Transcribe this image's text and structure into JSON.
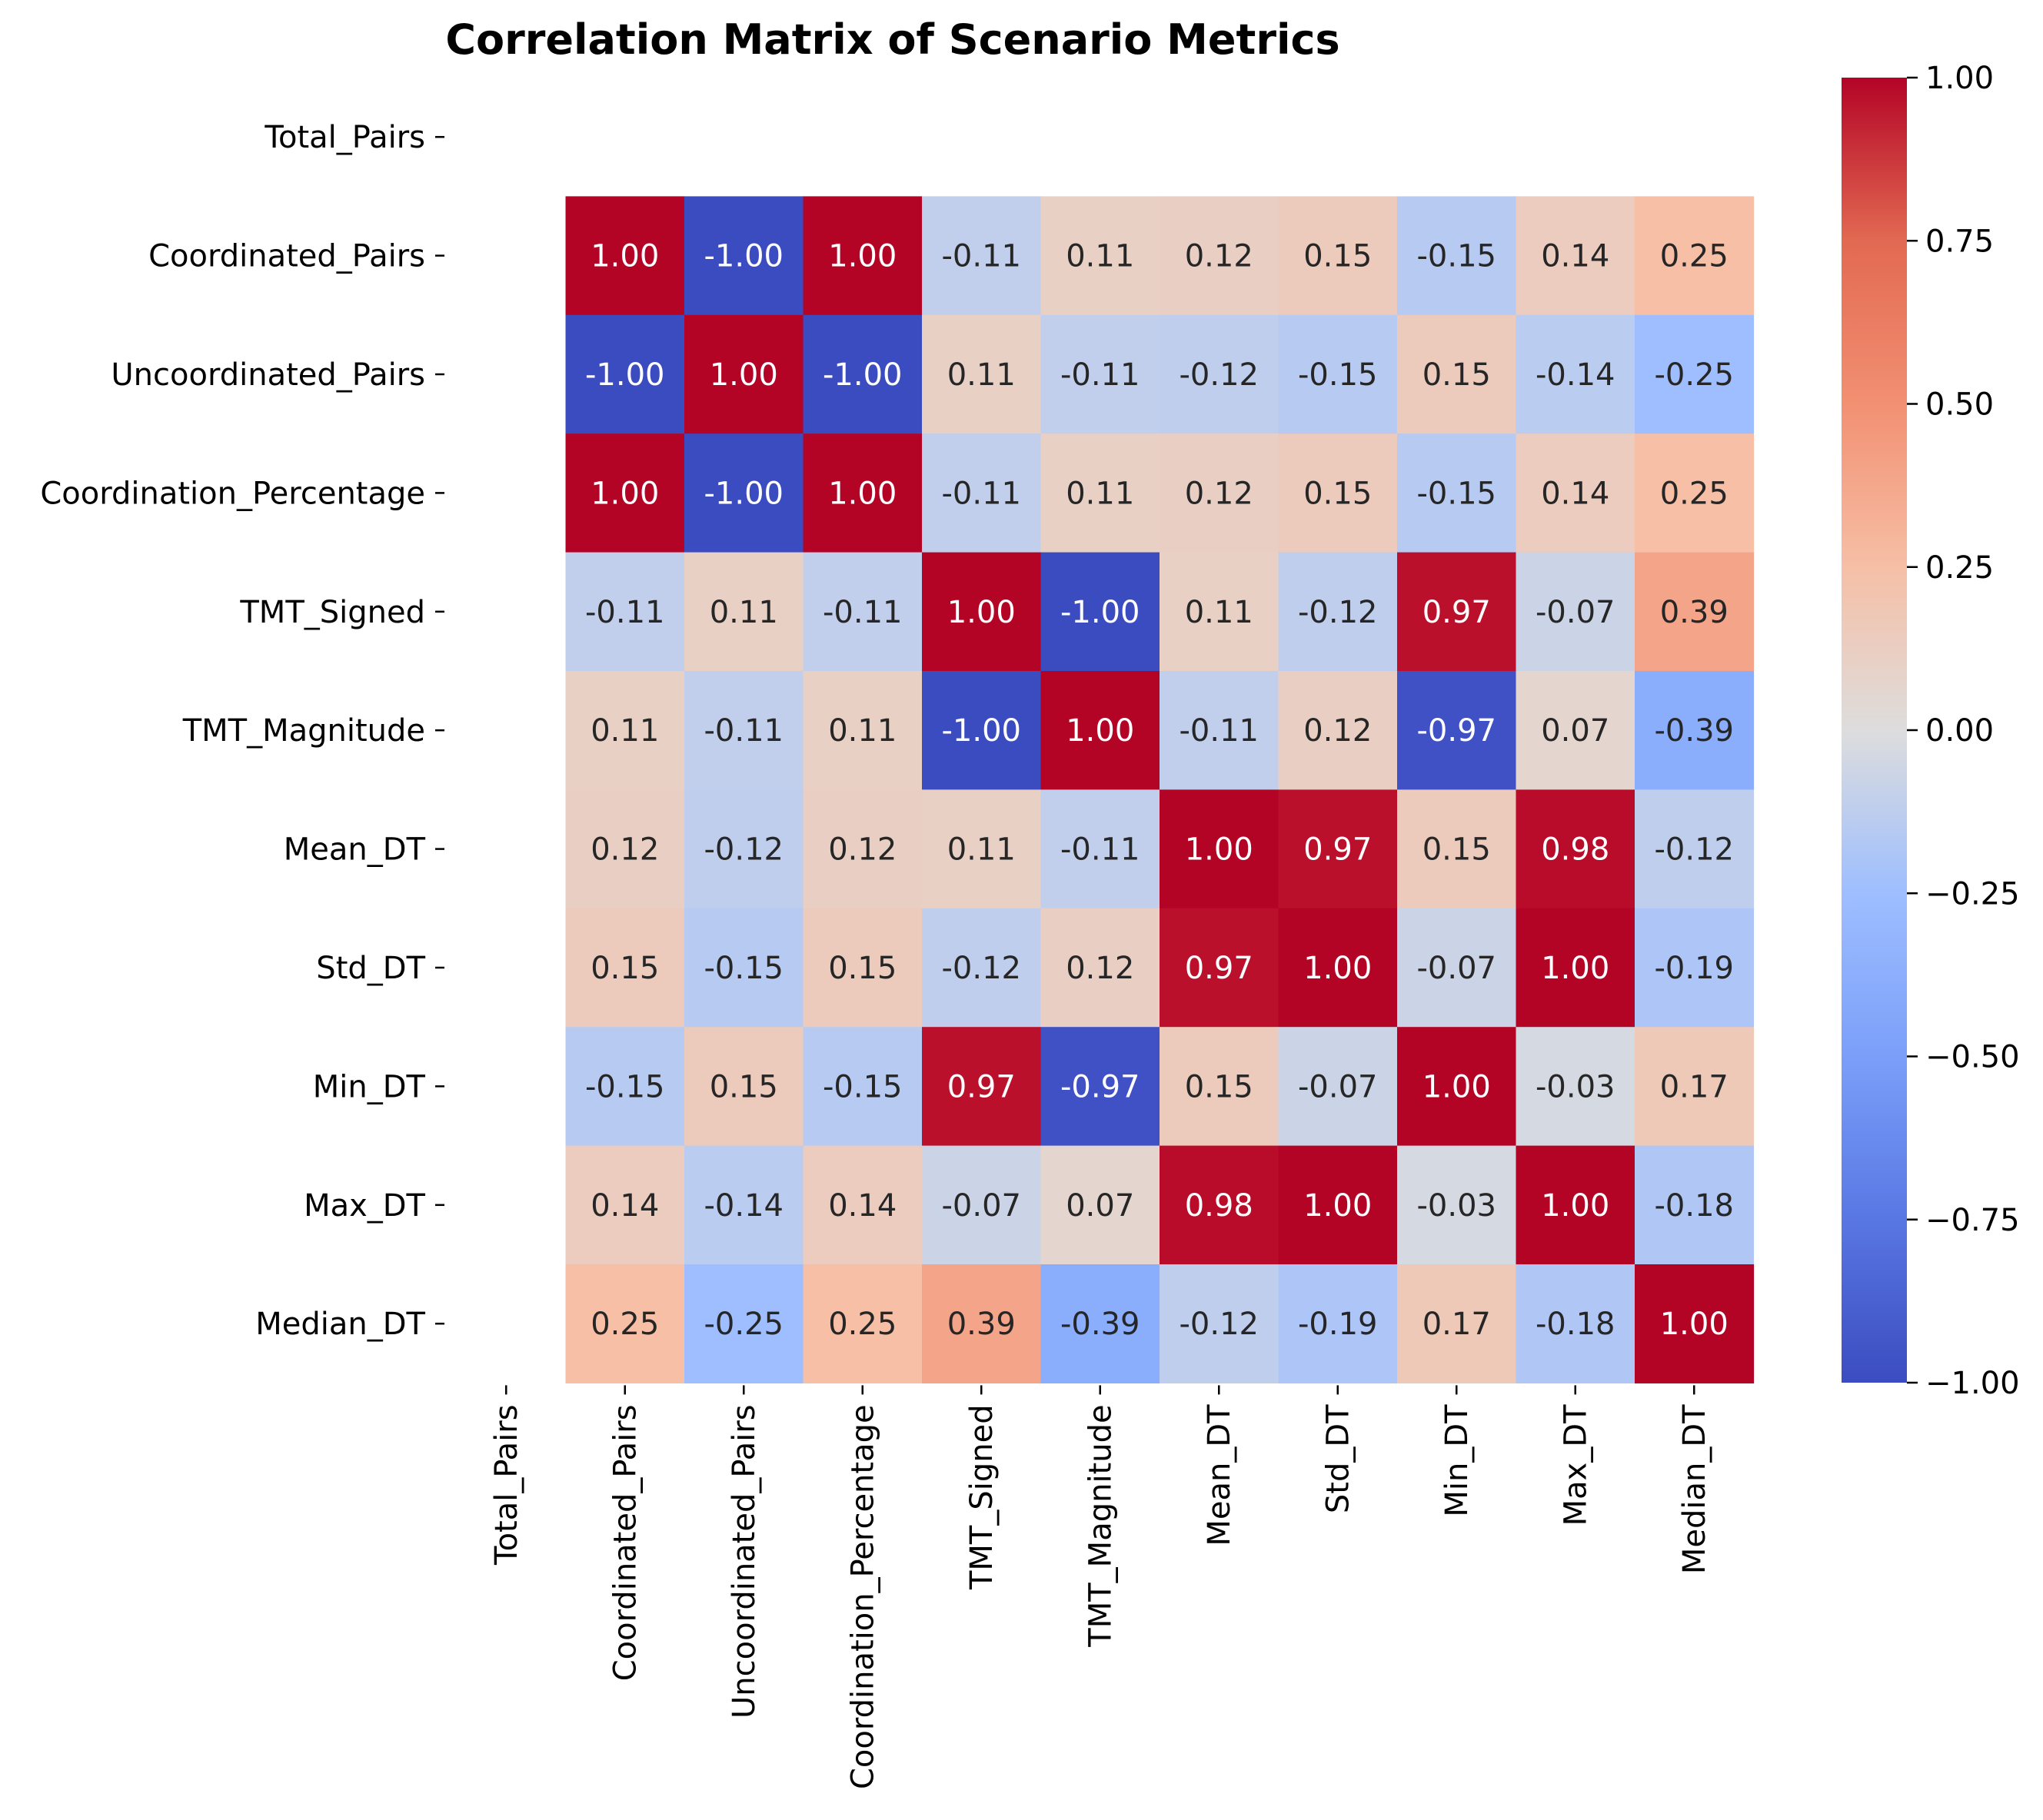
{
  "chart_data": {
    "type": "heatmap",
    "title": "Correlation Matrix of Scenario Metrics",
    "row_labels": [
      "Total_Pairs",
      "Coordinated_Pairs",
      "Uncoordinated_Pairs",
      "Coordination_Percentage",
      "TMT_Signed",
      "TMT_Magnitude",
      "Mean_DT",
      "Std_DT",
      "Min_DT",
      "Max_DT",
      "Median_DT"
    ],
    "col_labels": [
      "Total_Pairs",
      "Coordinated_Pairs",
      "Uncoordinated_Pairs",
      "Coordination_Percentage",
      "TMT_Signed",
      "TMT_Magnitude",
      "Mean_DT",
      "Std_DT",
      "Min_DT",
      "Max_DT",
      "Median_DT"
    ],
    "values": [
      [
        null,
        null,
        null,
        null,
        null,
        null,
        null,
        null,
        null,
        null,
        null
      ],
      [
        null,
        1.0,
        -1.0,
        1.0,
        -0.11,
        0.11,
        0.12,
        0.15,
        -0.15,
        0.14,
        0.25
      ],
      [
        null,
        -1.0,
        1.0,
        -1.0,
        0.11,
        -0.11,
        -0.12,
        -0.15,
        0.15,
        -0.14,
        -0.25
      ],
      [
        null,
        1.0,
        -1.0,
        1.0,
        -0.11,
        0.11,
        0.12,
        0.15,
        -0.15,
        0.14,
        0.25
      ],
      [
        null,
        -0.11,
        0.11,
        -0.11,
        1.0,
        -1.0,
        0.11,
        -0.12,
        0.97,
        -0.07,
        0.39
      ],
      [
        null,
        0.11,
        -0.11,
        0.11,
        -1.0,
        1.0,
        -0.11,
        0.12,
        -0.97,
        0.07,
        -0.39
      ],
      [
        null,
        0.12,
        -0.12,
        0.12,
        0.11,
        -0.11,
        1.0,
        0.97,
        0.15,
        0.98,
        -0.12
      ],
      [
        null,
        0.15,
        -0.15,
        0.15,
        -0.12,
        0.12,
        0.97,
        1.0,
        -0.07,
        1.0,
        -0.19
      ],
      [
        null,
        -0.15,
        0.15,
        -0.15,
        0.97,
        -0.97,
        0.15,
        -0.07,
        1.0,
        -0.03,
        0.17
      ],
      [
        null,
        0.14,
        -0.14,
        0.14,
        -0.07,
        0.07,
        0.98,
        1.0,
        -0.03,
        1.0,
        -0.18
      ],
      [
        null,
        0.25,
        -0.25,
        0.25,
        0.39,
        -0.39,
        -0.12,
        -0.19,
        0.17,
        -0.18,
        1.0
      ]
    ],
    "colorbar": {
      "colormap": "coolwarm",
      "vmin": -1.0,
      "vmax": 1.0,
      "ticks": [
        1.0,
        0.75,
        0.5,
        0.25,
        0.0,
        -0.25,
        -0.5,
        -0.75,
        -1.0
      ],
      "tick_labels": [
        "1.00",
        "0.75",
        "0.50",
        "0.25",
        "0.00",
        "−0.25",
        "−0.50",
        "−0.75",
        "−1.00"
      ]
    }
  }
}
